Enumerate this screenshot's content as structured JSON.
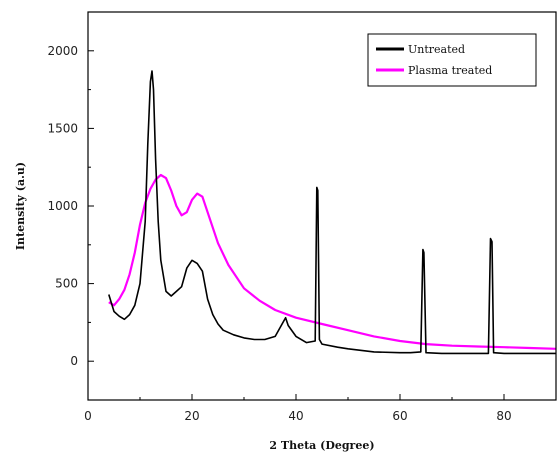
{
  "chart_data": {
    "type": "line",
    "xlabel": "2 Theta (Degree)",
    "ylabel": "Intensity (a.u)",
    "xlim": [
      0,
      90
    ],
    "ylim": [
      -250,
      2250
    ],
    "xticks": [
      0,
      20,
      40,
      60,
      80
    ],
    "yticks": [
      0,
      500,
      1000,
      1500,
      2000
    ],
    "grid": false,
    "legend_position": "top-right",
    "series": [
      {
        "name": "Untreated",
        "color": "#000000",
        "x": [
          4,
          5,
          6,
          7,
          8,
          9,
          10,
          11,
          11.5,
          12,
          12.3,
          12.6,
          13,
          13.5,
          14,
          15,
          16,
          17,
          18,
          19,
          20,
          21,
          22,
          23,
          24,
          25,
          26,
          28,
          30,
          32,
          34,
          36,
          37.5,
          38,
          38.5,
          40,
          42,
          43.7,
          44,
          44.2,
          44.5,
          45,
          48,
          50,
          55,
          60,
          62,
          64,
          64.4,
          64.6,
          65,
          68,
          70,
          75,
          77,
          77.4,
          77.7,
          78,
          80,
          85,
          90
        ],
        "y": [
          430,
          320,
          290,
          270,
          300,
          360,
          500,
          900,
          1400,
          1800,
          1870,
          1750,
          1300,
          900,
          650,
          450,
          420,
          450,
          480,
          600,
          650,
          630,
          580,
          400,
          300,
          240,
          200,
          170,
          150,
          140,
          140,
          160,
          250,
          280,
          230,
          160,
          120,
          130,
          1120,
          1100,
          140,
          110,
          90,
          80,
          60,
          55,
          55,
          60,
          720,
          700,
          55,
          50,
          50,
          50,
          50,
          790,
          770,
          55,
          50,
          50,
          50
        ]
      },
      {
        "name": "Plasma treated",
        "color": "#ff00ff",
        "x": [
          4,
          5,
          6,
          7,
          8,
          9,
          10,
          11,
          12,
          13,
          14,
          15,
          16,
          17,
          18,
          19,
          20,
          21,
          22,
          23,
          24,
          25,
          27,
          30,
          33,
          36,
          40,
          45,
          50,
          55,
          60,
          65,
          70,
          75,
          80,
          85,
          90
        ],
        "y": [
          380,
          360,
          400,
          460,
          560,
          700,
          880,
          1020,
          1110,
          1170,
          1200,
          1180,
          1100,
          1000,
          940,
          960,
          1040,
          1080,
          1060,
          960,
          860,
          760,
          620,
          470,
          390,
          330,
          280,
          240,
          200,
          160,
          130,
          110,
          100,
          95,
          90,
          85,
          80
        ]
      }
    ]
  }
}
